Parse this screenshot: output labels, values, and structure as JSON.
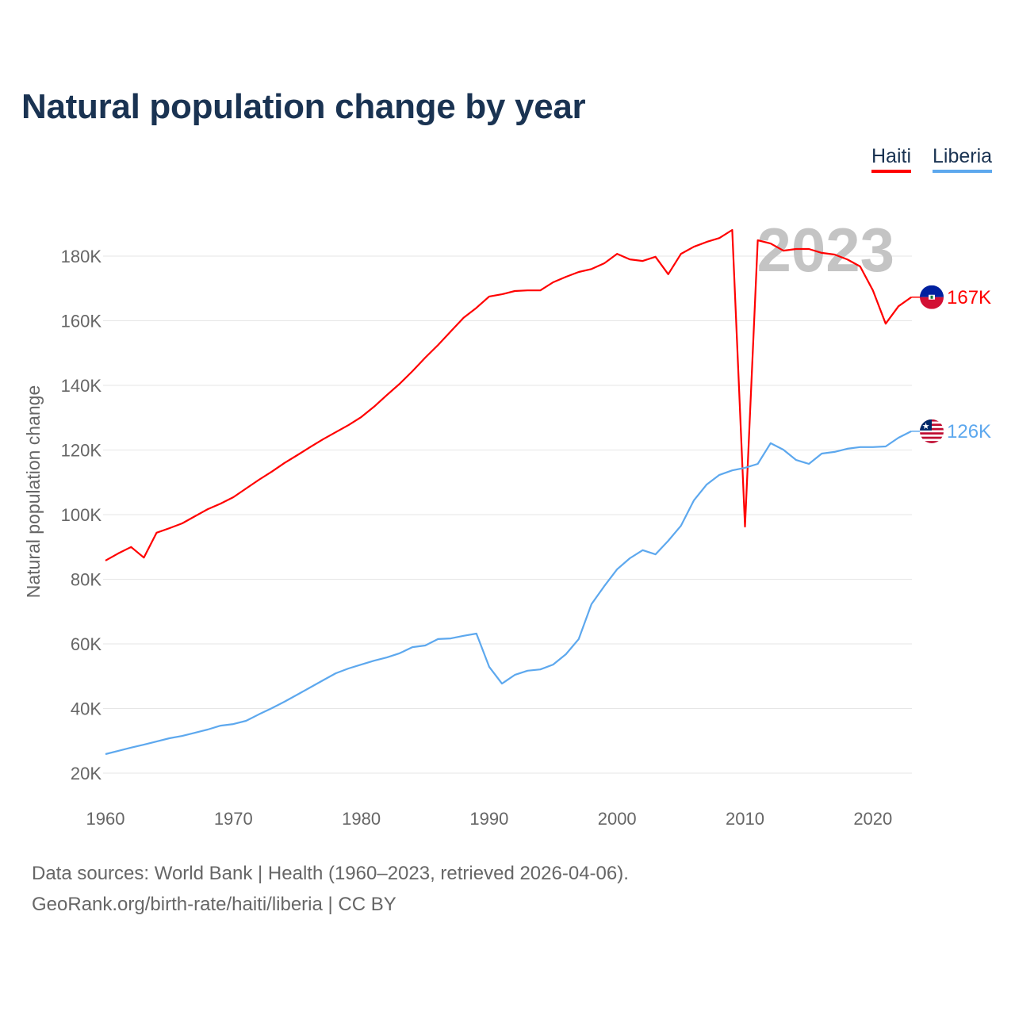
{
  "chart_data": {
    "type": "line",
    "title": "Natural population change by year",
    "xlabel": "",
    "ylabel": "Natural population change",
    "xlim": [
      1960,
      2023
    ],
    "ylim": [
      20000,
      190000
    ],
    "y_ticks": [
      20000,
      40000,
      60000,
      80000,
      100000,
      120000,
      140000,
      160000,
      180000
    ],
    "y_tick_labels": [
      "20K",
      "40K",
      "60K",
      "80K",
      "100K",
      "120K",
      "140K",
      "160K",
      "180K"
    ],
    "x_ticks": [
      1960,
      1970,
      1980,
      1990,
      2000,
      2010,
      2020
    ],
    "x_tick_labels": [
      "1960",
      "1970",
      "1980",
      "1990",
      "2000",
      "2010",
      "2020"
    ],
    "grid": true,
    "legend_position": "top-right",
    "year_watermark": "2023",
    "x_start": 1960,
    "series": [
      {
        "name": "Haiti",
        "color": "#ff0000",
        "end_label": "167K",
        "flag_icon": "haiti-flag-icon",
        "values": [
          85800,
          88000,
          90000,
          86700,
          94400,
          95800,
          97300,
          99500,
          101700,
          103400,
          105400,
          108100,
          110800,
          113300,
          116000,
          118400,
          120900,
          123300,
          125500,
          127700,
          130200,
          133400,
          137000,
          140500,
          144400,
          148600,
          152500,
          156700,
          160900,
          164000,
          167500,
          168200,
          169200,
          169400,
          169400,
          171900,
          173600,
          175100,
          176000,
          177800,
          180700,
          179000,
          178500,
          179800,
          174400,
          180700,
          182900,
          184400,
          185600,
          188100,
          96300,
          184900,
          183900,
          181700,
          182200,
          182200,
          181000,
          180500,
          179000,
          176800,
          169400,
          159100,
          164500,
          167300
        ]
      },
      {
        "name": "Liberia",
        "color": "#5da8ee",
        "end_label": "126K",
        "flag_icon": "liberia-flag-icon",
        "values": [
          25900,
          26900,
          27900,
          28800,
          29800,
          30800,
          31500,
          32500,
          33500,
          34700,
          35200,
          36200,
          38200,
          40100,
          42100,
          44300,
          46500,
          48700,
          50900,
          52400,
          53600,
          54800,
          55800,
          57100,
          59000,
          59500,
          61500,
          61700,
          62500,
          63200,
          52900,
          47700,
          50400,
          51700,
          52100,
          53600,
          56800,
          61500,
          72300,
          77900,
          83100,
          86500,
          89000,
          87700,
          91900,
          96600,
          104400,
          109300,
          112300,
          113700,
          114500,
          115700,
          122100,
          120100,
          116900,
          115700,
          118900,
          119400,
          120400,
          120900,
          120900,
          121100,
          123800,
          125800
        ]
      }
    ]
  },
  "footer": {
    "source_line": "Data sources: World Bank | Health (1960–2023, retrieved 2026-04-06).",
    "credit_line": "GeoRank.org/birth-rate/haiti/liberia | CC BY"
  }
}
